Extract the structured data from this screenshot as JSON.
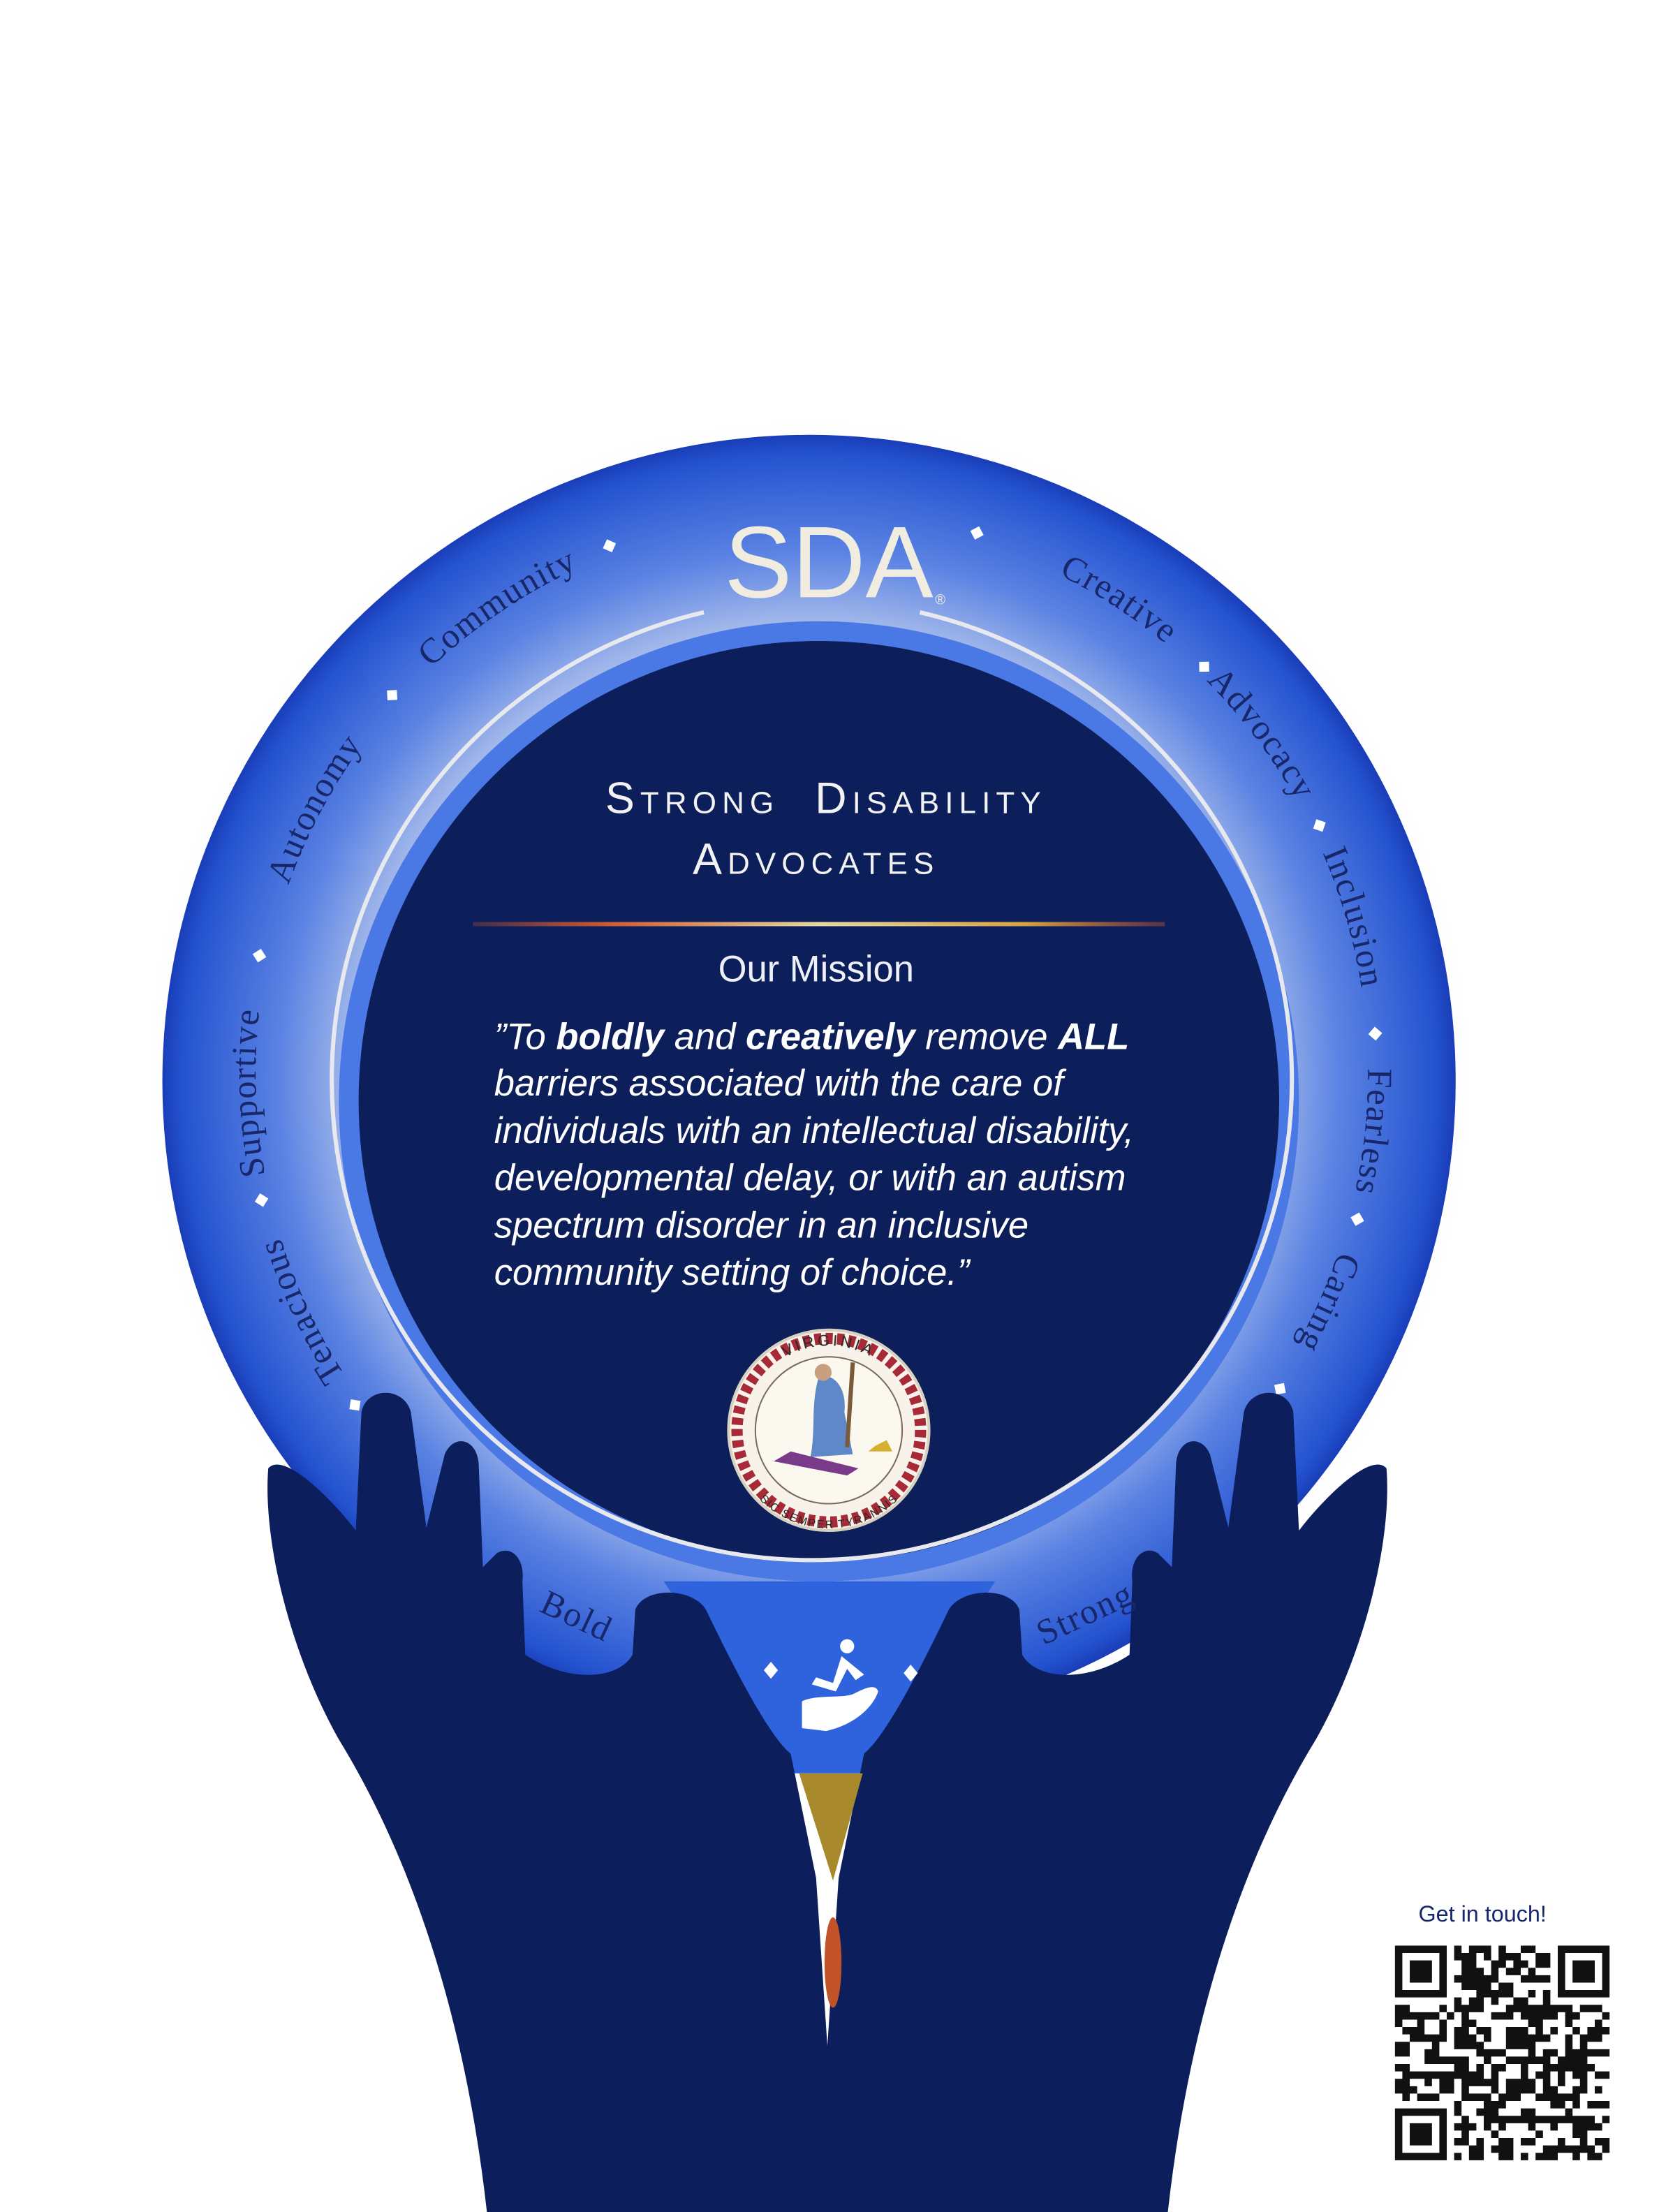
{
  "logo": {
    "text": "SDA",
    "mark": "®"
  },
  "ring_words": [
    "Community",
    "Autonomy",
    "Supportive",
    "Tenacious",
    "Creative",
    "Advocacy",
    "Inclusion",
    "Fearless",
    "Caring"
  ],
  "bottom_words": [
    "Bold",
    "Strong"
  ],
  "title": {
    "lines": [
      "Strong  Disability",
      "Advocates"
    ]
  },
  "mission": {
    "heading": "Our Mission",
    "first_line": [
      "”To ",
      "boldly",
      " and ",
      "creatively",
      " remove ",
      "ALL"
    ],
    "lines": [
      "barriers associated with the care of",
      "individuals with an intellectual disability,",
      "developmental delay, or with an autism",
      "spectrum disorder in an inclusive",
      "community setting of choice.”"
    ]
  },
  "seal": {
    "top": "VIRGINIA",
    "bottom": "SIC SEMPER TYRANNIS"
  },
  "contact": {
    "label": "Get in touch!"
  }
}
